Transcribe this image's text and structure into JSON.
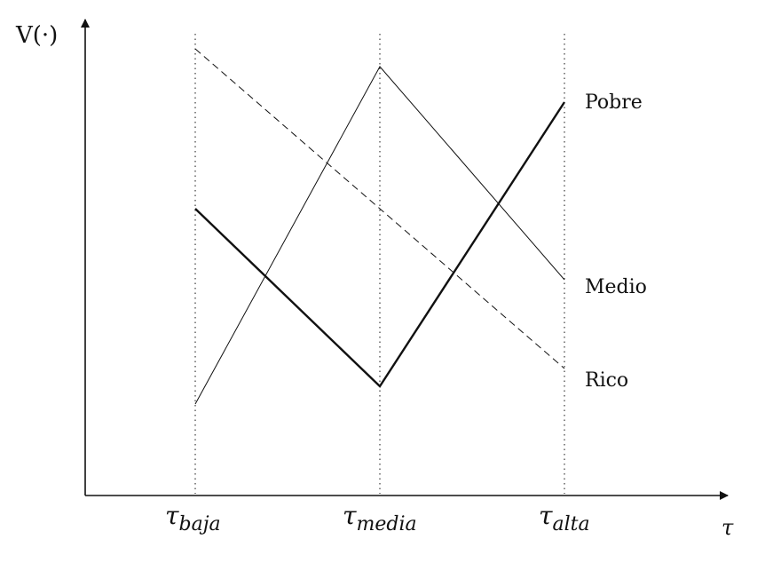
{
  "axes": {
    "y_label": "V(·)",
    "x_label": "τ"
  },
  "ticks": [
    {
      "main": "τ",
      "sub": "baja"
    },
    {
      "main": "τ",
      "sub": "media"
    },
    {
      "main": "τ",
      "sub": "alta"
    }
  ],
  "series": [
    {
      "name": "Pobre",
      "style": "thick-solid",
      "values": [
        0.6,
        0.2,
        0.84
      ]
    },
    {
      "name": "Medio",
      "style": "thin-solid",
      "values": [
        0.16,
        0.92,
        0.44
      ]
    },
    {
      "name": "Rico",
      "style": "dashed",
      "values": [
        0.96,
        0.6,
        0.24
      ]
    }
  ],
  "colors": {
    "ink": "#111111"
  }
}
